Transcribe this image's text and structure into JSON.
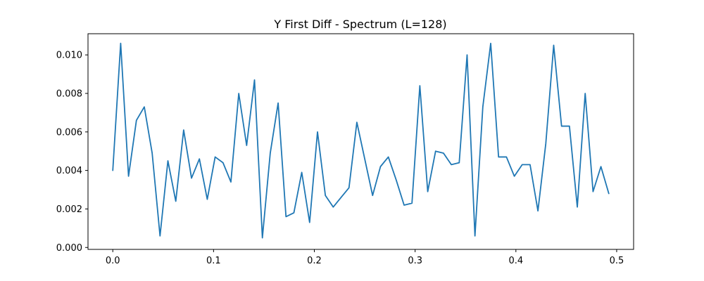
{
  "chart_data": {
    "type": "line",
    "title": "Y First Diff - Spectrum (L=128)",
    "xlabel": "",
    "ylabel": "",
    "xlim": [
      -0.0246,
      0.5168
    ],
    "ylim": [
      -0.0001,
      0.0111
    ],
    "grid": false,
    "x_ticks": [
      0.0,
      0.1,
      0.2,
      0.3,
      0.4,
      0.5
    ],
    "x_tick_labels": [
      "0.0",
      "0.1",
      "0.2",
      "0.3",
      "0.4",
      "0.5"
    ],
    "y_ticks": [
      0.0,
      0.002,
      0.004,
      0.006,
      0.008,
      0.01
    ],
    "y_tick_labels": [
      "0.000",
      "0.002",
      "0.004",
      "0.006",
      "0.008",
      "0.010"
    ],
    "series": [
      {
        "color": "#1f77b4",
        "x": [
          0.0,
          0.0078125,
          0.015625,
          0.0234375,
          0.03125,
          0.0390625,
          0.046875,
          0.0546875,
          0.0625,
          0.0703125,
          0.078125,
          0.0859375,
          0.09375,
          0.1015625,
          0.109375,
          0.1171875,
          0.125,
          0.1328125,
          0.140625,
          0.1484375,
          0.15625,
          0.1640625,
          0.171875,
          0.1796875,
          0.1875,
          0.1953125,
          0.203125,
          0.2109375,
          0.21875,
          0.2265625,
          0.234375,
          0.2421875,
          0.25,
          0.2578125,
          0.265625,
          0.2734375,
          0.28125,
          0.2890625,
          0.296875,
          0.3046875,
          0.3125,
          0.3203125,
          0.328125,
          0.3359375,
          0.34375,
          0.3515625,
          0.359375,
          0.3671875,
          0.375,
          0.3828125,
          0.390625,
          0.3984375,
          0.40625,
          0.4140625,
          0.421875,
          0.4296875,
          0.4375,
          0.4453125,
          0.453125,
          0.4609375,
          0.46875,
          0.4765625,
          0.484375,
          0.4921875
        ],
        "values": [
          0.004,
          0.0106,
          0.0037,
          0.0066,
          0.0073,
          0.0049,
          0.0006,
          0.0045,
          0.0024,
          0.0061,
          0.0036,
          0.0046,
          0.0025,
          0.0047,
          0.0044,
          0.0034,
          0.008,
          0.0053,
          0.0087,
          0.0005,
          0.0049,
          0.0075,
          0.0016,
          0.0018,
          0.0039,
          0.0013,
          0.006,
          0.0027,
          0.0021,
          0.0026,
          0.0031,
          0.0065,
          0.0046,
          0.0027,
          0.0042,
          0.0047,
          0.0035,
          0.0022,
          0.0023,
          0.0084,
          0.0029,
          0.005,
          0.0049,
          0.0043,
          0.0044,
          0.01,
          0.0006,
          0.0073,
          0.0106,
          0.0047,
          0.0047,
          0.0037,
          0.0043,
          0.0043,
          0.0019,
          0.0054,
          0.0105,
          0.0063,
          0.0063,
          0.0021,
          0.008,
          0.0029,
          0.0042,
          0.0028
        ]
      }
    ]
  }
}
